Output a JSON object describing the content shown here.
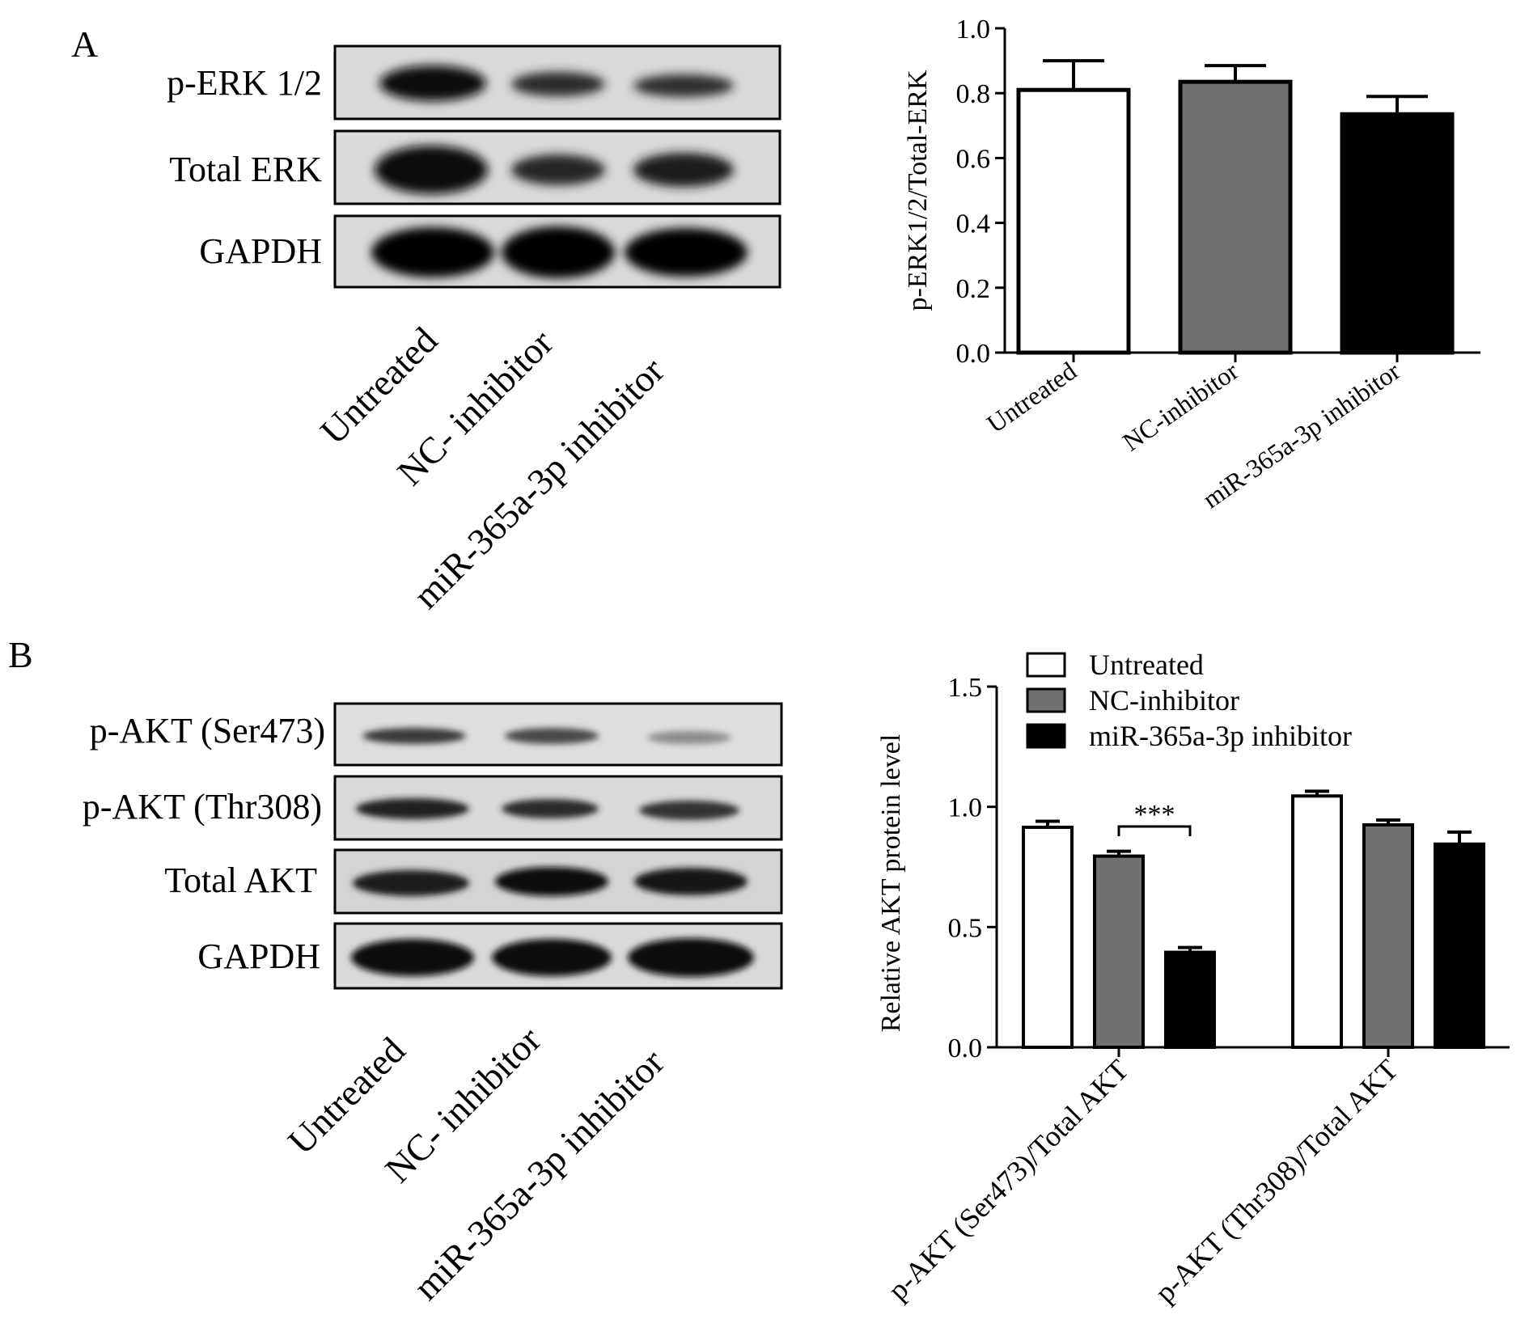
{
  "panel_labels": {
    "a": "A",
    "b": "B"
  },
  "blot_a": {
    "rows": [
      "p-ERK 1/2",
      "Total ERK",
      "GAPDH"
    ],
    "lanes": [
      "Untreated",
      "NC- inhibitor",
      "miR-365a-3p inhibitor"
    ]
  },
  "blot_b": {
    "rows": [
      "p-AKT (Ser473)",
      "p-AKT (Thr308)",
      "Total AKT",
      "GAPDH"
    ],
    "lanes": [
      "Untreated",
      "NC- inhibitor",
      "miR-365a-3p inhibitor"
    ]
  },
  "chart_data": [
    {
      "type": "bar",
      "categories": [
        "Untreated",
        "NC-inhibitor",
        "miR-365a-3p inhibitor"
      ],
      "values": [
        0.81,
        0.835,
        0.735
      ],
      "errors": [
        0.09,
        0.05,
        0.055
      ],
      "colors": [
        "#ffffff",
        "#707070",
        "#000000"
      ],
      "ylabel": "p-ERK1/2/Total-ERK",
      "xlabel": "",
      "ylim": [
        0,
        1.0
      ],
      "yticks": [
        "0.0",
        "0.2",
        "0.4",
        "0.6",
        "0.8",
        "1.0"
      ],
      "grid": false
    },
    {
      "type": "bar",
      "categories": [
        "p-AKT (Ser473)/Total AKT",
        "p-AKT (Thr308)/Total AKT"
      ],
      "series": [
        {
          "name": "Untreated",
          "color": "#ffffff",
          "values": [
            0.915,
            1.045
          ],
          "errors": [
            0.025,
            0.02
          ]
        },
        {
          "name": "NC-inhibitor",
          "color": "#707070",
          "values": [
            0.795,
            0.925
          ],
          "errors": [
            0.02,
            0.02
          ]
        },
        {
          "name": "miR-365a-3p inhibitor",
          "color": "#000000",
          "values": [
            0.395,
            0.845
          ],
          "errors": [
            0.02,
            0.05
          ]
        }
      ],
      "ylabel": "Relative AKT protein level",
      "xlabel": "",
      "ylim": [
        0,
        1.5
      ],
      "yticks": [
        "0.0",
        "0.5",
        "1.0",
        "1.5"
      ],
      "legend": "top-right",
      "annotations": [
        {
          "text": "***",
          "category": 0,
          "between": [
            1,
            2
          ]
        }
      ],
      "grid": false
    }
  ]
}
